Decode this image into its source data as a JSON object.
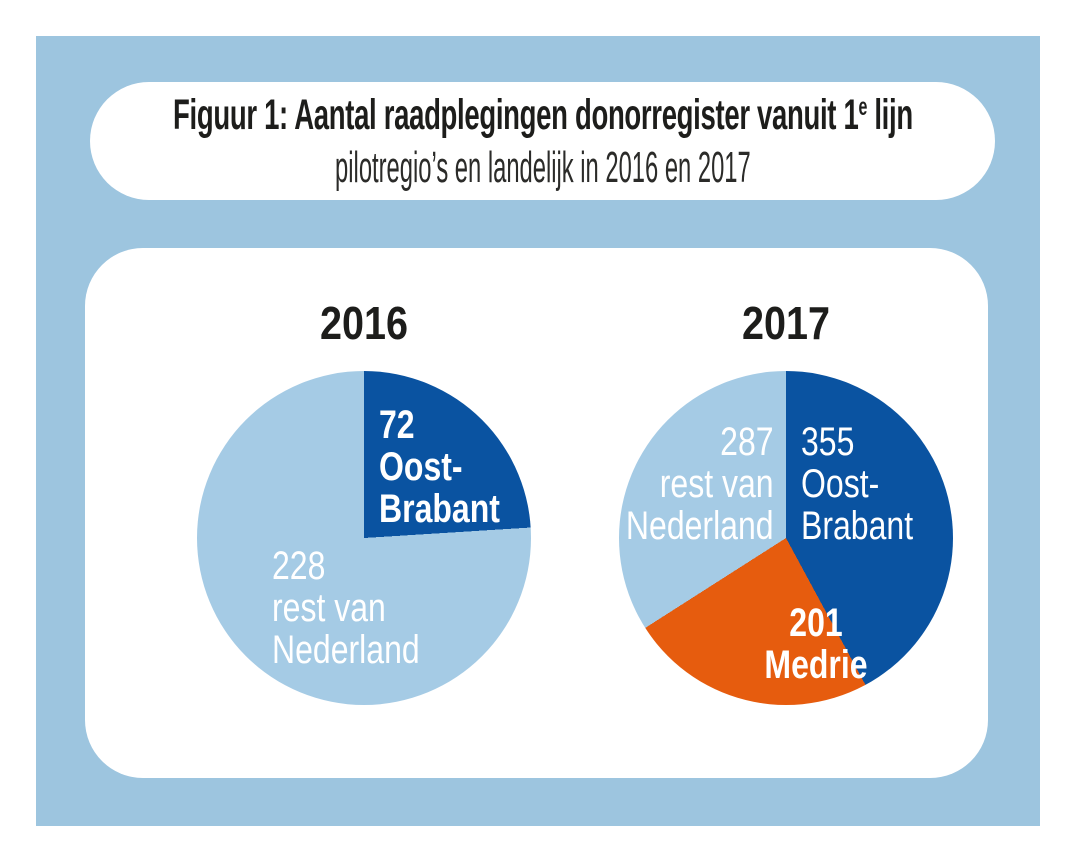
{
  "colors": {
    "background_blue": "#9dc5df",
    "dark_blue": "#0a53a1",
    "light_blue": "#a5cbe5",
    "orange": "#e65c0e",
    "card_white": "#ffffff",
    "title_black": "#1d1d1b",
    "label_white": "#ffffff"
  },
  "title_card": {
    "title_prefix": "Figuur 1: Aantal raadplegingen donorregister vanuit 1",
    "title_sup": "e",
    "title_suffix": " lijn",
    "subtitle": "pilotregio’s en landelijk in 2016 en 2017"
  },
  "chart_data": [
    {
      "type": "pie",
      "title": "2016",
      "start_angle_deg": 0,
      "direction": "clockwise",
      "total": 300,
      "slices": [
        {
          "label": "Oost-Brabant",
          "value": 72,
          "color": "#0a53a1",
          "text_lines": [
            "72",
            "Oost-",
            "Brabant"
          ],
          "font_weight": "bold"
        },
        {
          "label": "rest van Nederland",
          "value": 228,
          "color": "#a5cbe5",
          "text_lines": [
            "228",
            "rest van",
            "Nederland"
          ],
          "font_weight": "light"
        }
      ]
    },
    {
      "type": "pie",
      "title": "2017",
      "start_angle_deg": 0,
      "direction": "clockwise",
      "total": 843,
      "slices": [
        {
          "label": "Oost-Brabant",
          "value": 355,
          "color": "#0a53a1",
          "text_lines": [
            "355",
            "Oost-",
            "Brabant"
          ],
          "font_weight": "light"
        },
        {
          "label": "Medrie",
          "value": 201,
          "color": "#e65c0e",
          "text_lines": [
            "201",
            "Medrie"
          ],
          "font_weight": "bold"
        },
        {
          "label": "rest van Nederland",
          "value": 287,
          "color": "#a5cbe5",
          "text_lines": [
            "287",
            "rest van",
            "Nederland"
          ],
          "font_weight": "light"
        }
      ]
    }
  ]
}
